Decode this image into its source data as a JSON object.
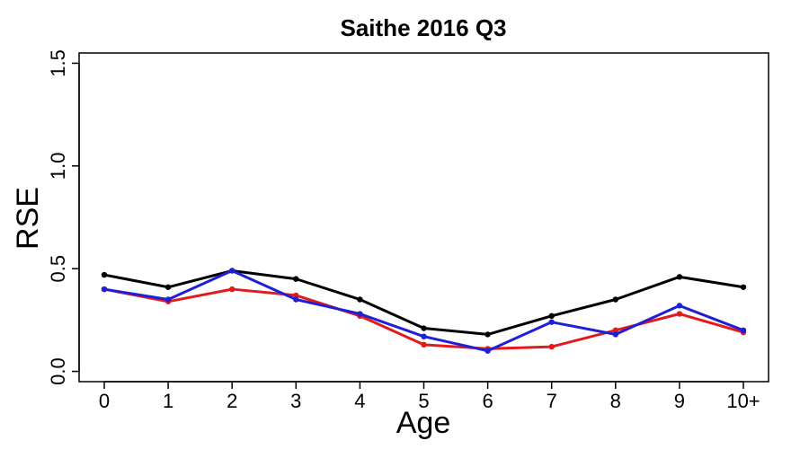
{
  "chart_data": {
    "type": "line",
    "title": "Saithe 2016 Q3",
    "xlabel": "Age",
    "ylabel": "RSE",
    "categories": [
      "0",
      "1",
      "2",
      "3",
      "4",
      "5",
      "6",
      "7",
      "8",
      "9",
      "10+"
    ],
    "ylim": [
      -0.05,
      1.55
    ],
    "yticks": [
      "0.0",
      "0.5",
      "1.0",
      "1.5"
    ],
    "grid": false,
    "legend": "none",
    "series": [
      {
        "color": "#000000",
        "values": [
          0.47,
          0.41,
          0.49,
          0.45,
          0.35,
          0.21,
          0.18,
          0.27,
          0.35,
          0.46,
          0.41
        ]
      },
      {
        "color": "#e31a1c",
        "values": [
          0.4,
          0.34,
          0.4,
          0.37,
          0.27,
          0.13,
          0.11,
          0.12,
          0.2,
          0.28,
          0.19
        ]
      },
      {
        "color": "#1f1fd6",
        "values": [
          0.4,
          0.35,
          0.49,
          0.35,
          0.28,
          0.17,
          0.1,
          0.24,
          0.18,
          0.32,
          0.2
        ]
      }
    ]
  }
}
